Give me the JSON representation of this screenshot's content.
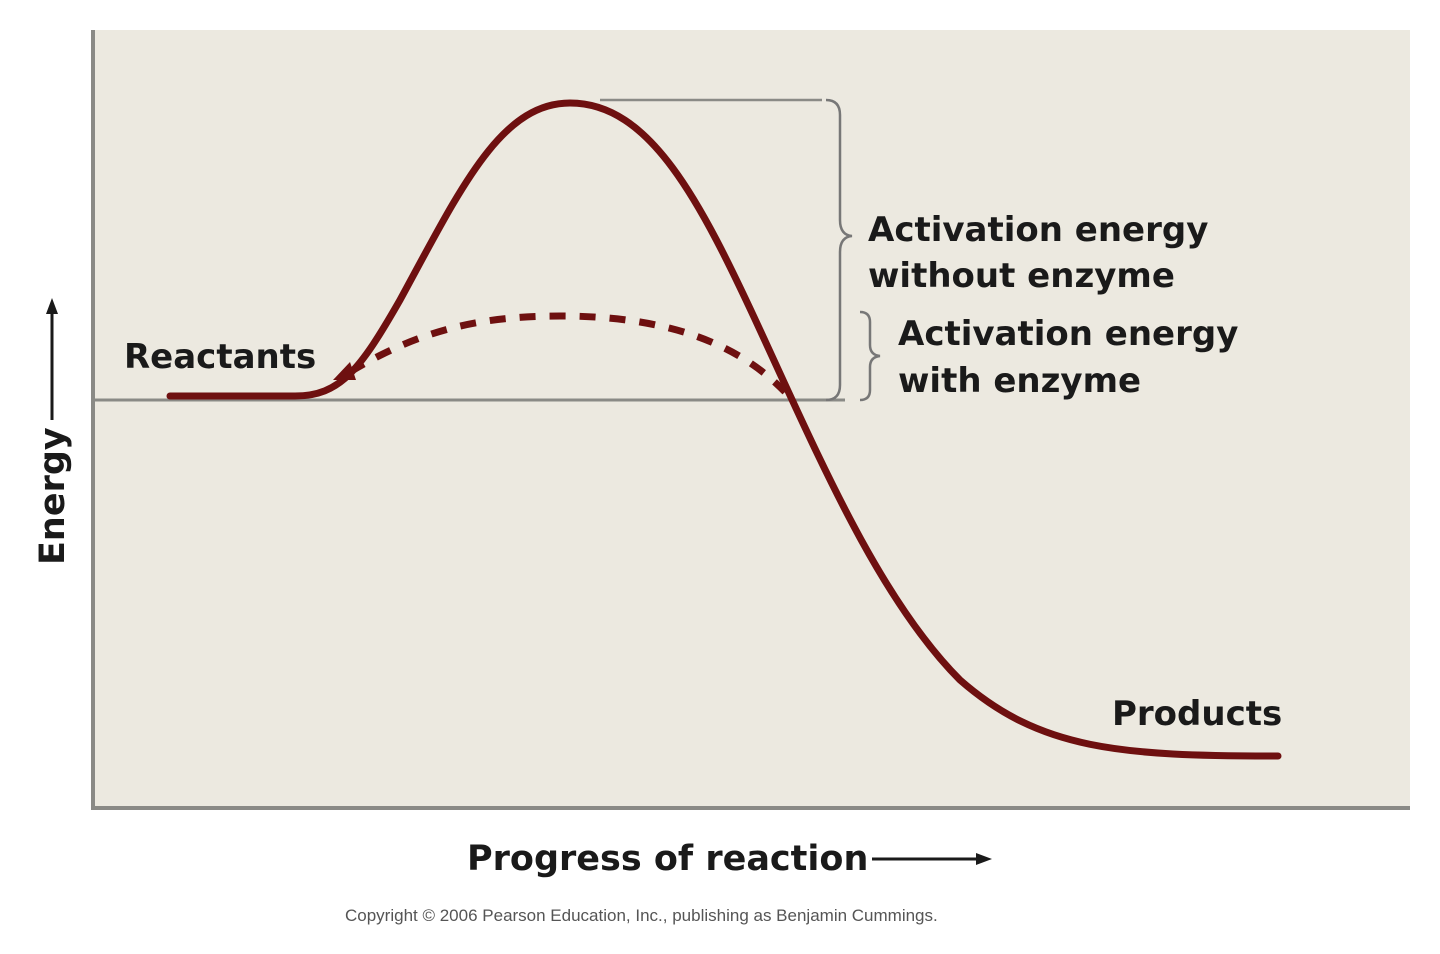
{
  "diagram": {
    "y_axis_label": "Energy",
    "x_axis_label": "Progress of reaction",
    "reactants_label": "Reactants",
    "products_label": "Products",
    "annotation_without_enzyme": [
      "Activation energy",
      "without enzyme"
    ],
    "annotation_with_enzyme": [
      "Activation energy",
      "with enzyme"
    ],
    "copyright": "Copyright © 2006 Pearson Education, Inc., publishing as Benjamin Cummings.",
    "colors": {
      "background_panel": "#ece9e0",
      "curve": "#6e1010",
      "axis": "#8a8a86",
      "text": "#1a1a1a"
    },
    "series": [
      {
        "style": "solid",
        "meaning": "without enzyme"
      },
      {
        "style": "dashed",
        "meaning": "with enzyme"
      }
    ]
  }
}
